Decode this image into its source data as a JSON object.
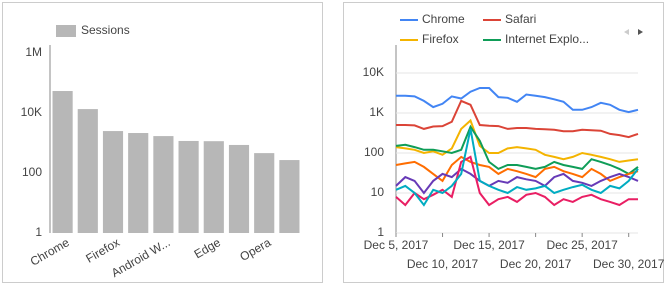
{
  "chart_data": [
    {
      "type": "bar",
      "log_scale": true,
      "grid": false,
      "categories": [
        "Chrome",
        null,
        "Firefox",
        null,
        "Android W...",
        null,
        "Edge",
        null,
        "Opera",
        null
      ],
      "series": [
        {
          "name": "Sessions",
          "color": "#b7b7b7",
          "values": [
            54000,
            13500,
            2500,
            2150,
            1700,
            1170,
            1150,
            860,
            460,
            270
          ]
        }
      ],
      "ylim": [
        1,
        1000000
      ],
      "yticks": [
        1,
        100,
        {
          "value": 10000,
          "label": "10K"
        },
        {
          "value": 1000000,
          "label": "1M"
        }
      ]
    },
    {
      "type": "line",
      "log_scale": true,
      "grid": true,
      "x": [
        "2017-12-05",
        "2017-12-06",
        "2017-12-07",
        "2017-12-08",
        "2017-12-09",
        "2017-12-10",
        "2017-12-11",
        "2017-12-12",
        "2017-12-13",
        "2017-12-14",
        "2017-12-15",
        "2017-12-16",
        "2017-12-17",
        "2017-12-18",
        "2017-12-19",
        "2017-12-20",
        "2017-12-21",
        "2017-12-22",
        "2017-12-23",
        "2017-12-24",
        "2017-12-25",
        "2017-12-26",
        "2017-12-27",
        "2017-12-28",
        "2017-12-29",
        "2017-12-30",
        "2017-12-31"
      ],
      "xlim": [
        "2017-12-05",
        "2017-12-31"
      ],
      "xticks": [
        {
          "value": "2017-12-05",
          "label": "Dec 5, 2017"
        },
        {
          "value": "2017-12-10",
          "label": "Dec 10, 2017"
        },
        {
          "value": "2017-12-15",
          "label": "Dec 15, 2017"
        },
        {
          "value": "2017-12-20",
          "label": "Dec 20, 2017"
        },
        {
          "value": "2017-12-25",
          "label": "Dec 25, 2017"
        },
        {
          "value": "2017-12-30",
          "label": "Dec 30, 2017"
        }
      ],
      "ylim": [
        1,
        50000
      ],
      "yticks": [
        1,
        10,
        100,
        {
          "value": 1000,
          "label": "1K"
        },
        {
          "value": 10000,
          "label": "10K"
        }
      ],
      "series": [
        {
          "name": "Chrome",
          "color": "#4285f4",
          "values": [
            2700,
            2700,
            2600,
            2000,
            1400,
            1700,
            2600,
            2300,
            3400,
            4200,
            4200,
            2500,
            2400,
            1900,
            2900,
            2700,
            2500,
            2200,
            1900,
            1200,
            1200,
            1400,
            1800,
            1600,
            1200,
            1050,
            1200
          ]
        },
        {
          "name": "Safari",
          "color": "#db4437",
          "values": [
            500,
            500,
            490,
            400,
            460,
            470,
            600,
            2000,
            1600,
            500,
            480,
            470,
            400,
            420,
            420,
            400,
            390,
            380,
            350,
            350,
            380,
            370,
            360,
            300,
            280,
            250,
            300
          ]
        },
        {
          "name": "Firefox",
          "color": "#f4b400",
          "values": [
            140,
            130,
            120,
            100,
            110,
            90,
            130,
            400,
            650,
            150,
            100,
            100,
            130,
            140,
            130,
            120,
            90,
            80,
            70,
            80,
            100,
            90,
            80,
            70,
            60,
            65,
            70
          ]
        },
        {
          "name": "Internet Explo...",
          "color": "#0f9d58",
          "values": [
            150,
            160,
            140,
            120,
            120,
            110,
            100,
            120,
            450,
            200,
            60,
            40,
            50,
            50,
            45,
            40,
            45,
            60,
            50,
            45,
            40,
            70,
            60,
            50,
            40,
            30,
            45
          ]
        },
        {
          "color": "#ff6d00",
          "values": [
            50,
            55,
            60,
            45,
            30,
            20,
            50,
            80,
            60,
            50,
            45,
            30,
            40,
            35,
            30,
            25,
            40,
            45,
            35,
            30,
            25,
            40,
            30,
            20,
            25,
            30,
            35
          ]
        },
        {
          "color": "#673ab7",
          "values": [
            15,
            25,
            20,
            10,
            20,
            30,
            25,
            40,
            30,
            20,
            15,
            20,
            18,
            25,
            22,
            20,
            15,
            25,
            30,
            20,
            18,
            15,
            20,
            25,
            30,
            25,
            20
          ]
        },
        {
          "color": "#e91e63",
          "values": [
            8,
            5,
            10,
            7,
            9,
            12,
            8,
            60,
            80,
            10,
            5,
            7,
            8,
            6,
            9,
            10,
            8,
            5,
            7,
            6,
            8,
            9,
            7,
            6,
            5,
            7,
            7
          ]
        },
        {
          "color": "#00acc1",
          "values": [
            12,
            15,
            10,
            5,
            12,
            10,
            15,
            30,
            400,
            20,
            15,
            12,
            10,
            14,
            12,
            13,
            15,
            10,
            12,
            14,
            16,
            12,
            10,
            15,
            13,
            20,
            40
          ]
        }
      ]
    }
  ]
}
